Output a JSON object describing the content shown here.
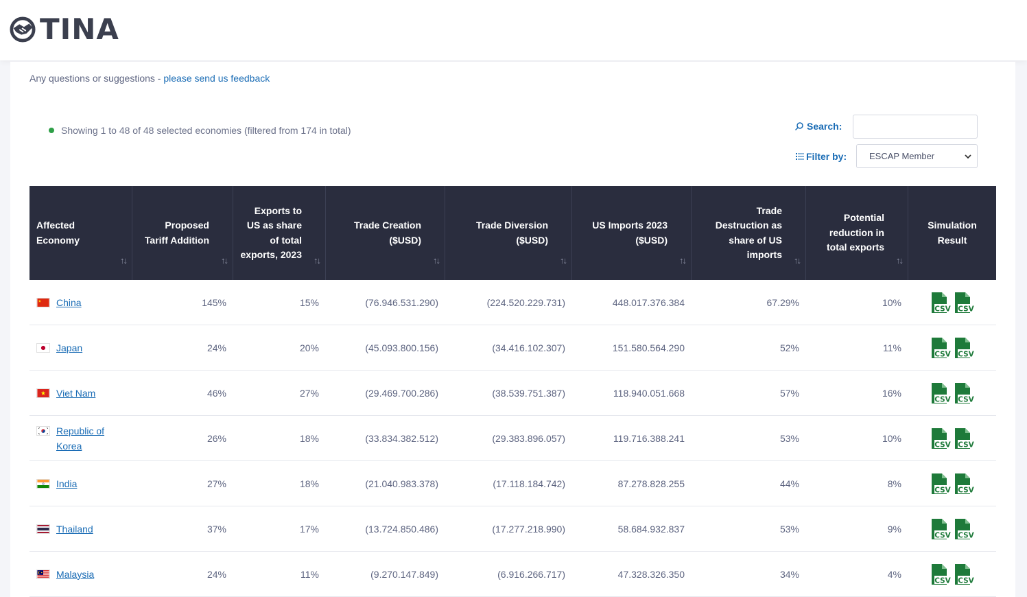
{
  "brand": {
    "name": "TINA"
  },
  "feedback": {
    "prefix": "Any questions or suggestions - ",
    "link": "please send us feedback"
  },
  "status": {
    "text": "Showing 1 to 48 of 48 selected economies (filtered from 174 in total)"
  },
  "search": {
    "label": "Search:",
    "value": ""
  },
  "filter": {
    "label": "Filter by:",
    "selected": "ESCAP Member"
  },
  "table": {
    "headers": [
      "Affected Economy",
      "Proposed Tariff Addition",
      "Exports to US as share of total exports, 2023",
      "Trade Creation ($USD)",
      "Trade Diversion ($USD)",
      "US Imports 2023 ($USD)",
      "Trade Destruction as share of US imports",
      "Potential reduction in total exports",
      "Simulation Result"
    ],
    "rows": [
      {
        "economy": "China",
        "flag": "cn",
        "tariff": "145%",
        "export_share": "15%",
        "creation": "(76.946.531.290)",
        "diversion": "(224.520.229.731)",
        "imports": "448.017.376.384",
        "destruction": "67.29%",
        "reduction": "10%"
      },
      {
        "economy": "Japan",
        "flag": "jp",
        "tariff": "24%",
        "export_share": "20%",
        "creation": "(45.093.800.156)",
        "diversion": "(34.416.102.307)",
        "imports": "151.580.564.290",
        "destruction": "52%",
        "reduction": "11%"
      },
      {
        "economy": "Viet Nam",
        "flag": "vn",
        "tariff": "46%",
        "export_share": "27%",
        "creation": "(29.469.700.286)",
        "diversion": "(38.539.751.387)",
        "imports": "118.940.051.668",
        "destruction": "57%",
        "reduction": "16%"
      },
      {
        "economy": "Republic of Korea",
        "flag": "kr",
        "tariff": "26%",
        "export_share": "18%",
        "creation": "(33.834.382.512)",
        "diversion": "(29.383.896.057)",
        "imports": "119.716.388.241",
        "destruction": "53%",
        "reduction": "10%"
      },
      {
        "economy": "India",
        "flag": "in",
        "tariff": "27%",
        "export_share": "18%",
        "creation": "(21.040.983.378)",
        "diversion": "(17.118.184.742)",
        "imports": "87.278.828.255",
        "destruction": "44%",
        "reduction": "8%"
      },
      {
        "economy": "Thailand",
        "flag": "th",
        "tariff": "37%",
        "export_share": "17%",
        "creation": "(13.724.850.486)",
        "diversion": "(17.277.218.990)",
        "imports": "58.684.932.837",
        "destruction": "53%",
        "reduction": "9%"
      },
      {
        "economy": "Malaysia",
        "flag": "my",
        "tariff": "24%",
        "export_share": "11%",
        "creation": "(9.270.147.849)",
        "diversion": "(6.916.266.717)",
        "imports": "47.328.326.350",
        "destruction": "34%",
        "reduction": "4%"
      }
    ],
    "csv_label": "CSV"
  },
  "icons": [
    "handshake-logo-icon",
    "search-icon",
    "filter-list-icon",
    "chevron-down-icon",
    "sort-arrows-icon",
    "csv-file-icon"
  ],
  "colors": {
    "header_bg": "#2a2d3e",
    "link": "#1a6cb5",
    "csv_green": "#1e7a3a",
    "status_dot": "#2e9f47"
  }
}
